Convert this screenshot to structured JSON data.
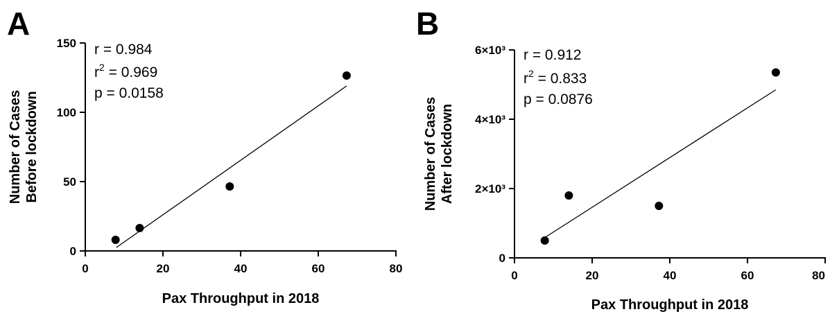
{
  "chart_data": [
    {
      "type": "scatter",
      "panel": "A",
      "xlabel": "Pax Throughput in 2018",
      "ylabel_lines": [
        "Number of Cases",
        "Before lockdown"
      ],
      "xlim": [
        0,
        80
      ],
      "ylim": [
        0,
        150
      ],
      "xticks": [
        "0",
        "20",
        "40",
        "60",
        "80"
      ],
      "yticks": [
        "0",
        "50",
        "100",
        "150"
      ],
      "x": [
        7.8,
        14,
        37.2,
        67.3
      ],
      "y": [
        8,
        16.5,
        46.5,
        126.5
      ],
      "fit_line": {
        "x": [
          8,
          67.3
        ],
        "y": [
          2.5,
          119
        ]
      },
      "stats": {
        "r": "r = 0.984",
        "r2_prefix": "r",
        "r2_sup": "2",
        "r2_value": " = 0.969",
        "p": "p = 0.0158"
      },
      "grid": false,
      "legend": "none"
    },
    {
      "type": "scatter",
      "panel": "B",
      "xlabel": "Pax Throughput in 2018",
      "ylabel_lines": [
        "Number of Cases",
        "After lockdown"
      ],
      "xlim": [
        0,
        80
      ],
      "ylim": [
        0,
        6000
      ],
      "xticks": [
        "0",
        "20",
        "40",
        "60",
        "80"
      ],
      "yticks": [
        "0",
        "2×10³",
        "4×10³",
        "6×10³"
      ],
      "x": [
        7.8,
        14,
        37.2,
        67.3
      ],
      "y": [
        500,
        1800,
        1500,
        5350
      ],
      "fit_line": {
        "x": [
          8,
          67.3
        ],
        "y": [
          600,
          4850
        ]
      },
      "stats": {
        "r": "r = 0.912",
        "r2_prefix": "r",
        "r2_sup": "2",
        "r2_value": " = 0.833",
        "p": "p = 0.0876"
      },
      "grid": false,
      "legend": "none"
    }
  ]
}
